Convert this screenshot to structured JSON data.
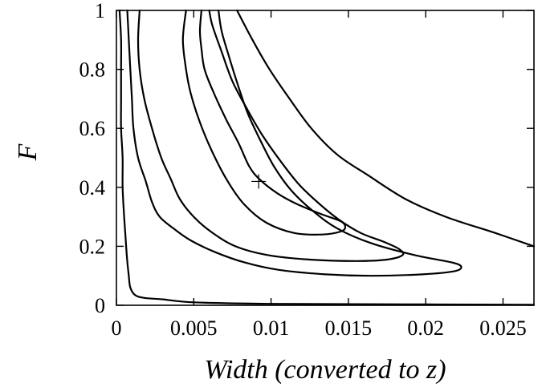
{
  "chart_data": {
    "type": "contour",
    "xlabel": "Width (converted to z)",
    "ylabel": "F",
    "xlim": [
      0,
      0.027
    ],
    "ylim": [
      0,
      1
    ],
    "x_ticks": [
      0,
      0.005,
      0.01,
      0.015,
      0.02,
      0.025
    ],
    "x_tick_labels": [
      "0",
      "0.005",
      "0.01",
      "0.015",
      "0.02",
      "0.025"
    ],
    "y_ticks": [
      0,
      0.2,
      0.4,
      0.6,
      0.8,
      1
    ],
    "y_tick_labels": [
      "0",
      "0.2",
      "0.4",
      "0.6",
      "0.8",
      "1"
    ],
    "grid": false,
    "legend": "none",
    "best_fit_marker": {
      "symbol": "+",
      "x": 0.0092,
      "y": 0.42
    },
    "contours": [
      {
        "points": [
          [
            0.0045,
            1
          ],
          [
            0.0043,
            0.9
          ],
          [
            0.0045,
            0.8
          ],
          [
            0.0048,
            0.72
          ],
          [
            0.0054,
            0.62
          ],
          [
            0.0062,
            0.52
          ],
          [
            0.0072,
            0.42
          ],
          [
            0.0083,
            0.34
          ],
          [
            0.0097,
            0.28
          ],
          [
            0.0115,
            0.245
          ],
          [
            0.0133,
            0.24
          ],
          [
            0.0145,
            0.25
          ],
          [
            0.0148,
            0.265
          ],
          [
            0.0145,
            0.285
          ],
          [
            0.0132,
            0.31
          ],
          [
            0.0116,
            0.345
          ],
          [
            0.0104,
            0.38
          ],
          [
            0.0093,
            0.425
          ],
          [
            0.0086,
            0.47
          ],
          [
            0.0079,
            0.55
          ],
          [
            0.0071,
            0.63
          ],
          [
            0.0063,
            0.72
          ],
          [
            0.0057,
            0.8
          ],
          [
            0.0055,
            0.87
          ],
          [
            0.0054,
            0.93
          ],
          [
            0.0055,
            1
          ]
        ]
      },
      {
        "points": [
          [
            0.0015,
            1
          ],
          [
            0.0014,
            0.9
          ],
          [
            0.0015,
            0.8
          ],
          [
            0.0018,
            0.7
          ],
          [
            0.0023,
            0.6
          ],
          [
            0.0029,
            0.5
          ],
          [
            0.0035,
            0.43
          ],
          [
            0.0041,
            0.36
          ],
          [
            0.005,
            0.3
          ],
          [
            0.0061,
            0.25
          ],
          [
            0.0077,
            0.2
          ],
          [
            0.0098,
            0.17
          ],
          [
            0.0125,
            0.155
          ],
          [
            0.0155,
            0.15
          ],
          [
            0.0175,
            0.155
          ],
          [
            0.0185,
            0.17
          ],
          [
            0.0183,
            0.19
          ],
          [
            0.0173,
            0.215
          ],
          [
            0.0158,
            0.245
          ],
          [
            0.0144,
            0.29
          ],
          [
            0.0131,
            0.345
          ],
          [
            0.0118,
            0.41
          ],
          [
            0.0106,
            0.49
          ],
          [
            0.0094,
            0.58
          ],
          [
            0.0084,
            0.67
          ],
          [
            0.0075,
            0.76
          ],
          [
            0.0068,
            0.86
          ],
          [
            0.0062,
            0.95
          ],
          [
            0.006,
            1
          ]
        ]
      },
      {
        "points": [
          [
            0.0007,
            1
          ],
          [
            0.0008,
            0.9
          ],
          [
            0.0009,
            0.8
          ],
          [
            0.001,
            0.7
          ],
          [
            0.0011,
            0.6
          ],
          [
            0.0014,
            0.5
          ],
          [
            0.0019,
            0.42
          ],
          [
            0.0023,
            0.35
          ],
          [
            0.0028,
            0.3
          ],
          [
            0.0037,
            0.26
          ],
          [
            0.0048,
            0.22
          ],
          [
            0.0064,
            0.18
          ],
          [
            0.0083,
            0.145
          ],
          [
            0.0105,
            0.12
          ],
          [
            0.0135,
            0.105
          ],
          [
            0.0165,
            0.1
          ],
          [
            0.0198,
            0.105
          ],
          [
            0.0218,
            0.115
          ],
          [
            0.0223,
            0.13
          ],
          [
            0.0217,
            0.145
          ],
          [
            0.0193,
            0.17
          ],
          [
            0.0165,
            0.21
          ],
          [
            0.0143,
            0.26
          ],
          [
            0.0127,
            0.32
          ],
          [
            0.0113,
            0.39
          ],
          [
            0.0102,
            0.47
          ],
          [
            0.0093,
            0.56
          ],
          [
            0.0085,
            0.65
          ],
          [
            0.0079,
            0.74
          ],
          [
            0.0073,
            0.84
          ],
          [
            0.0068,
            0.93
          ],
          [
            0.0066,
            1
          ]
        ]
      },
      {
        "points": [
          [
            0.0002,
            1
          ],
          [
            0.0003,
            0.9
          ],
          [
            0.0003,
            0.8
          ],
          [
            0.0003,
            0.7
          ],
          [
            0.0003,
            0.6
          ],
          [
            0.0004,
            0.5
          ],
          [
            0.0004,
            0.4
          ],
          [
            0.0005,
            0.3
          ],
          [
            0.0006,
            0.22
          ],
          [
            0.0007,
            0.15
          ],
          [
            0.0008,
            0.1
          ],
          [
            0.0009,
            0.06
          ],
          [
            0.0012,
            0.035
          ],
          [
            0.0018,
            0.025
          ],
          [
            0.003,
            0.02
          ],
          [
            0.005,
            0.01
          ],
          [
            0.01,
            0.005
          ],
          [
            0.02,
            0.003
          ],
          [
            0.027,
            0.002
          ]
        ]
      },
      {
        "points": [
          [
            0.0078,
            1
          ],
          [
            0.0088,
            0.9
          ],
          [
            0.0099,
            0.8
          ],
          [
            0.0112,
            0.7
          ],
          [
            0.0126,
            0.6
          ],
          [
            0.0143,
            0.51
          ],
          [
            0.0163,
            0.44
          ],
          [
            0.0187,
            0.36
          ],
          [
            0.0213,
            0.3
          ],
          [
            0.0245,
            0.245
          ],
          [
            0.027,
            0.2
          ]
        ]
      }
    ]
  }
}
